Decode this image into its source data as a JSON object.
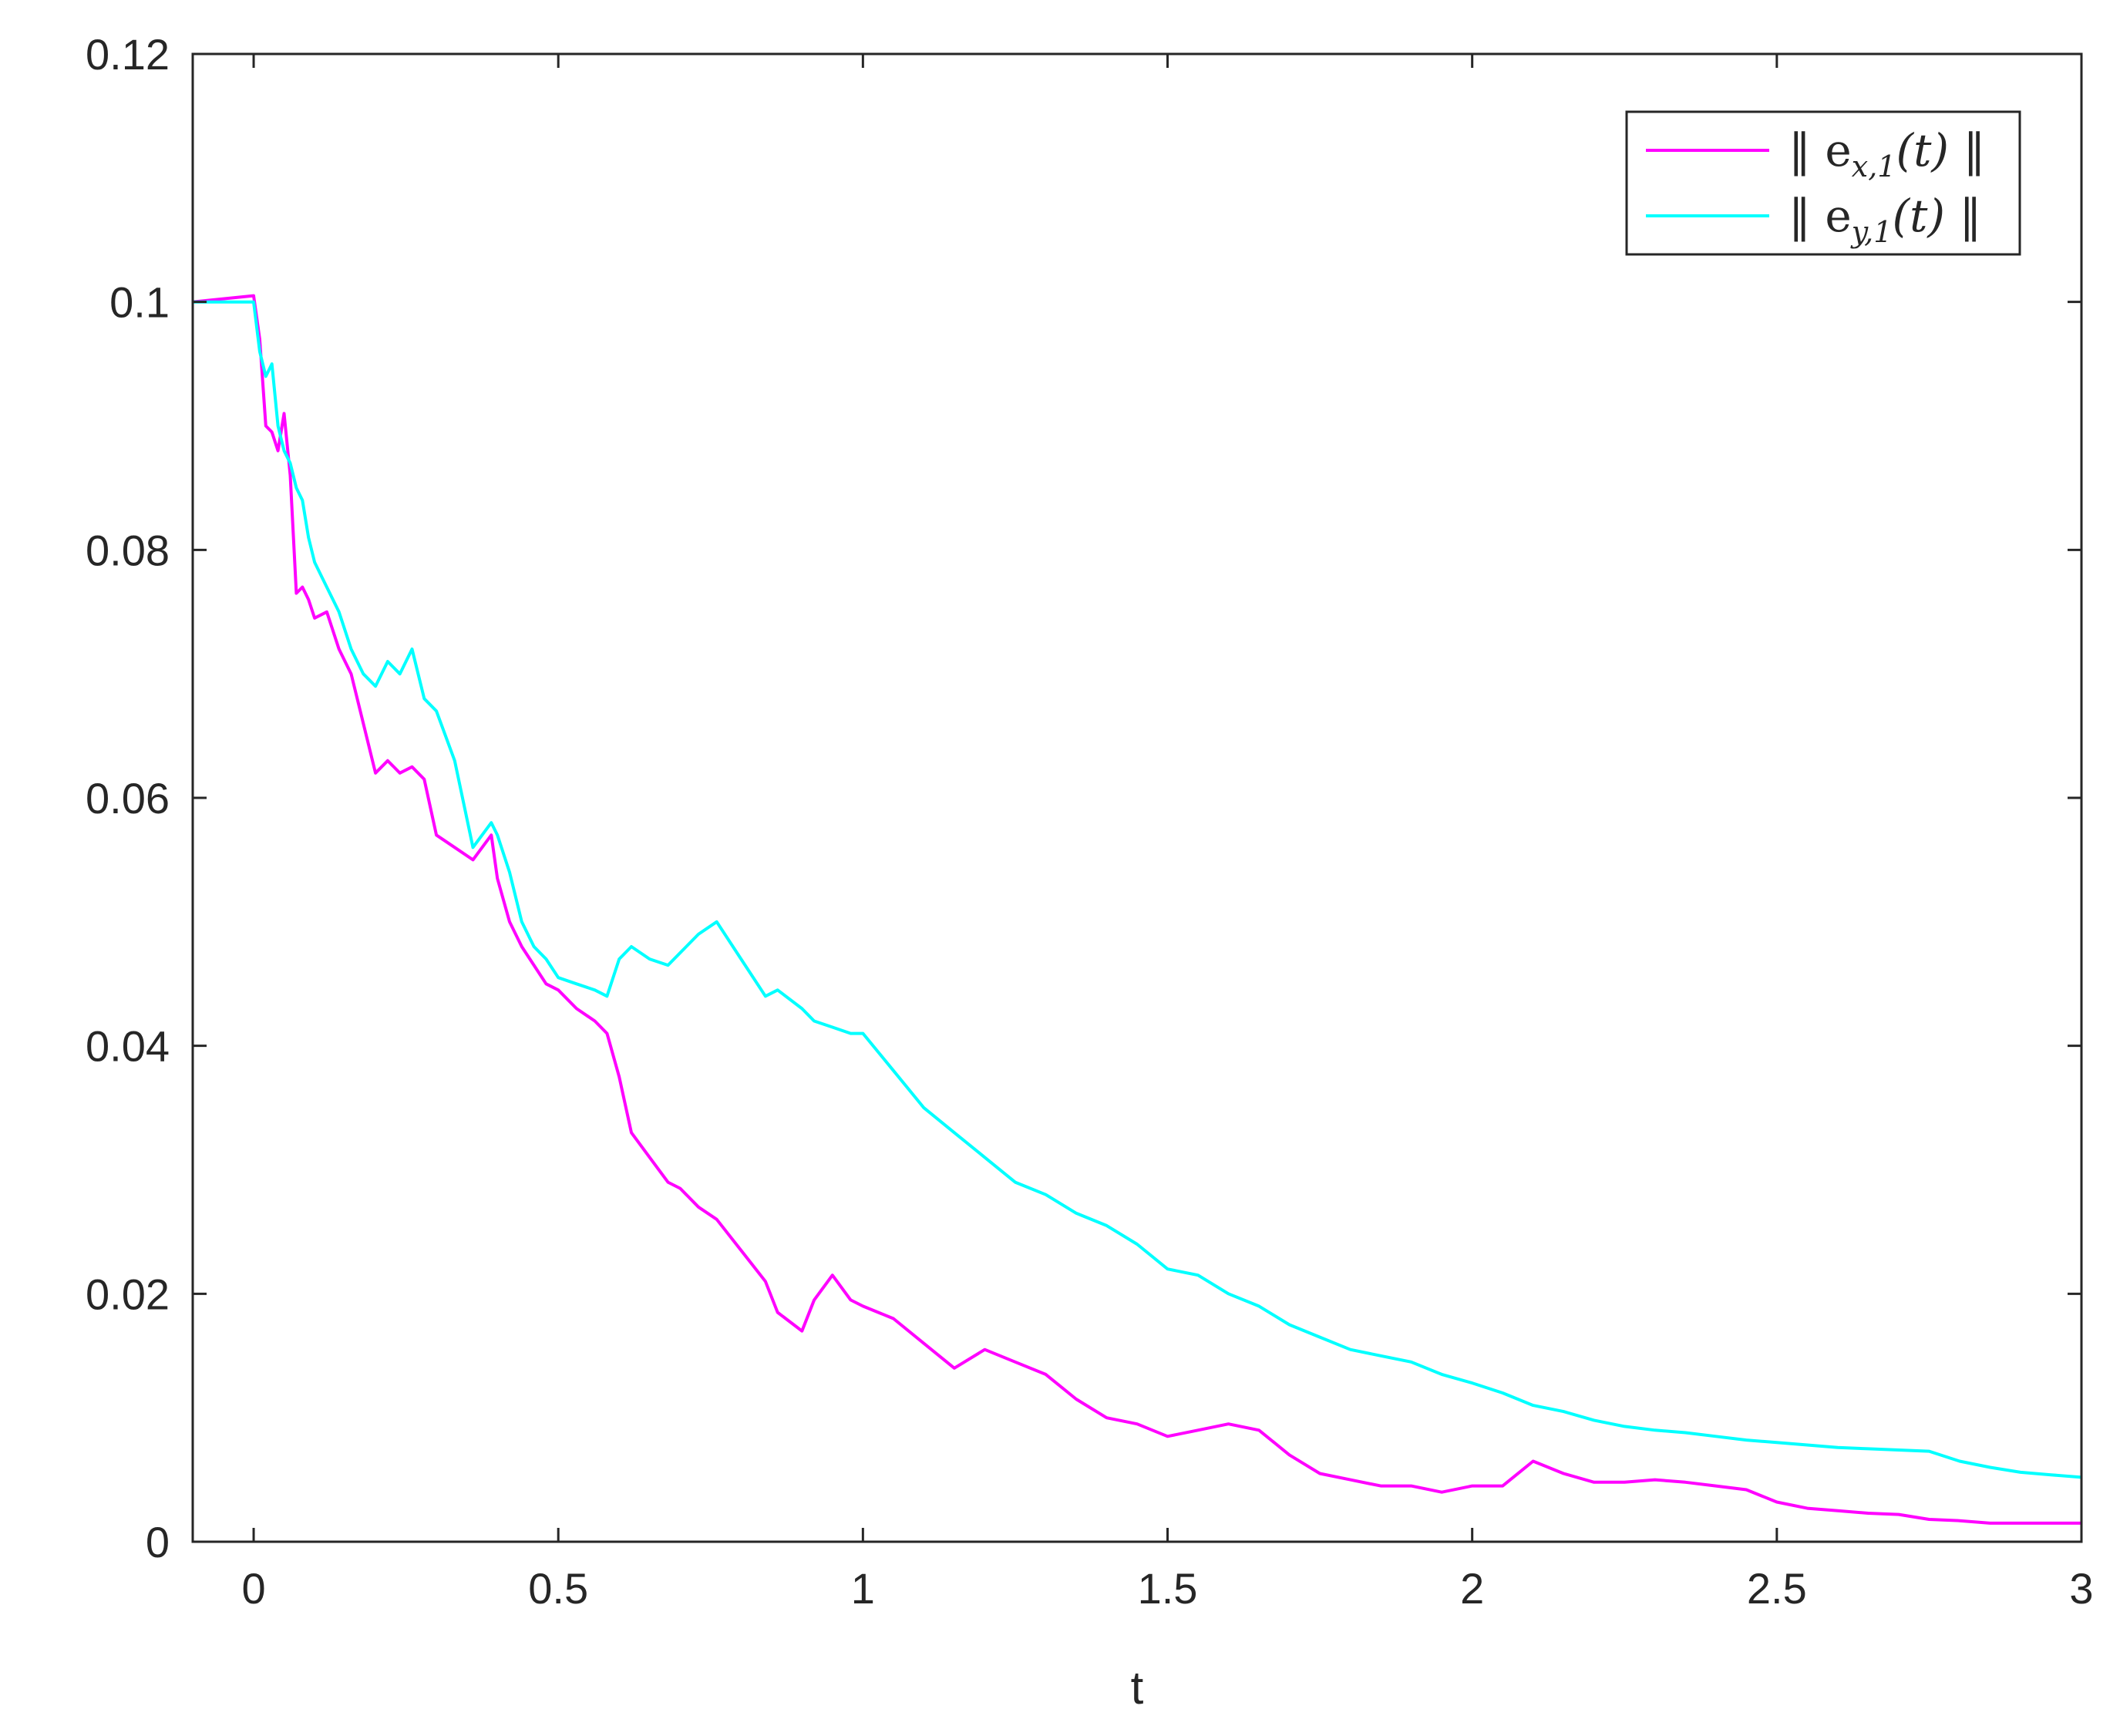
{
  "chart_data": {
    "type": "line",
    "xlabel": "t",
    "ylabel": "",
    "xlim": [
      -0.1,
      3
    ],
    "ylim": [
      0,
      0.12
    ],
    "xticks": [
      0,
      0.5,
      1,
      1.5,
      2,
      2.5,
      3
    ],
    "xtick_labels": [
      "0",
      "0.5",
      "1",
      "1.5",
      "2",
      "2.5",
      "3"
    ],
    "yticks": [
      0,
      0.02,
      0.04,
      0.06,
      0.08,
      0.1,
      0.12
    ],
    "ytick_labels": [
      "0",
      "0.02",
      "0.04",
      "0.06",
      "0.08",
      "0.1",
      "0.12"
    ],
    "grid": false,
    "legend_position": "top-right",
    "series": [
      {
        "name": "‖ e_{x,1}(t) ‖",
        "legend": {
          "pre": "‖ e",
          "sub": "x,1",
          "post": "(t) ‖"
        },
        "color": "#ff00ff",
        "x": [
          -0.1,
          0.0,
          0.01,
          0.02,
          0.03,
          0.04,
          0.05,
          0.06,
          0.07,
          0.08,
          0.09,
          0.1,
          0.12,
          0.14,
          0.16,
          0.18,
          0.2,
          0.22,
          0.24,
          0.26,
          0.28,
          0.3,
          0.33,
          0.36,
          0.39,
          0.4,
          0.42,
          0.44,
          0.46,
          0.48,
          0.5,
          0.53,
          0.56,
          0.58,
          0.6,
          0.62,
          0.65,
          0.68,
          0.7,
          0.73,
          0.76,
          0.8,
          0.84,
          0.86,
          0.9,
          0.92,
          0.95,
          0.98,
          1.0,
          1.05,
          1.1,
          1.15,
          1.2,
          1.25,
          1.3,
          1.35,
          1.4,
          1.45,
          1.5,
          1.55,
          1.6,
          1.65,
          1.7,
          1.75,
          1.8,
          1.85,
          1.9,
          1.95,
          2.0,
          2.05,
          2.1,
          2.15,
          2.2,
          2.25,
          2.3,
          2.35,
          2.4,
          2.45,
          2.5,
          2.55,
          2.6,
          2.65,
          2.7,
          2.75,
          2.8,
          2.85,
          2.9,
          2.95,
          3.0
        ],
        "y": [
          0.1,
          0.1005,
          0.097,
          0.09,
          0.0895,
          0.088,
          0.091,
          0.086,
          0.0765,
          0.077,
          0.076,
          0.0745,
          0.075,
          0.072,
          0.07,
          0.066,
          0.062,
          0.063,
          0.062,
          0.0625,
          0.0615,
          0.057,
          0.056,
          0.055,
          0.057,
          0.0535,
          0.05,
          0.048,
          0.0465,
          0.045,
          0.0445,
          0.043,
          0.042,
          0.041,
          0.0375,
          0.033,
          0.031,
          0.029,
          0.0285,
          0.027,
          0.026,
          0.0235,
          0.021,
          0.0185,
          0.017,
          0.0195,
          0.0215,
          0.0195,
          0.019,
          0.018,
          0.016,
          0.014,
          0.0155,
          0.0145,
          0.0135,
          0.0115,
          0.01,
          0.0095,
          0.0085,
          0.009,
          0.0095,
          0.009,
          0.007,
          0.0055,
          0.005,
          0.0045,
          0.0045,
          0.004,
          0.0045,
          0.0045,
          0.0065,
          0.0055,
          0.0048,
          0.0048,
          0.005,
          0.0048,
          0.0045,
          0.0042,
          0.0032,
          0.0027,
          0.0025,
          0.0023,
          0.0022,
          0.0018,
          0.0017,
          0.0015,
          0.0015,
          0.0015,
          0.0015
        ]
      },
      {
        "name": "‖ e_{y,1}(t) ‖",
        "legend": {
          "pre": "‖ e",
          "sub": "y,1",
          "post": "(t) ‖"
        },
        "color": "#00ffff",
        "x": [
          -0.1,
          0.0,
          0.01,
          0.02,
          0.03,
          0.04,
          0.05,
          0.06,
          0.07,
          0.08,
          0.09,
          0.1,
          0.12,
          0.14,
          0.16,
          0.18,
          0.2,
          0.22,
          0.24,
          0.26,
          0.28,
          0.3,
          0.33,
          0.36,
          0.39,
          0.4,
          0.42,
          0.44,
          0.46,
          0.48,
          0.5,
          0.53,
          0.56,
          0.58,
          0.6,
          0.62,
          0.65,
          0.68,
          0.7,
          0.73,
          0.76,
          0.8,
          0.84,
          0.86,
          0.9,
          0.92,
          0.95,
          0.98,
          1.0,
          1.05,
          1.1,
          1.15,
          1.2,
          1.25,
          1.3,
          1.35,
          1.4,
          1.45,
          1.5,
          1.55,
          1.6,
          1.65,
          1.7,
          1.75,
          1.8,
          1.85,
          1.9,
          1.95,
          2.0,
          2.05,
          2.1,
          2.15,
          2.2,
          2.25,
          2.3,
          2.35,
          2.4,
          2.45,
          2.5,
          2.55,
          2.6,
          2.65,
          2.7,
          2.75,
          2.8,
          2.85,
          2.9,
          2.95,
          3.0
        ],
        "y": [
          0.1,
          0.1,
          0.096,
          0.094,
          0.095,
          0.09,
          0.088,
          0.087,
          0.085,
          0.084,
          0.081,
          0.079,
          0.077,
          0.075,
          0.072,
          0.07,
          0.069,
          0.071,
          0.07,
          0.072,
          0.068,
          0.067,
          0.063,
          0.056,
          0.058,
          0.057,
          0.054,
          0.05,
          0.048,
          0.047,
          0.0455,
          0.045,
          0.0445,
          0.044,
          0.047,
          0.048,
          0.047,
          0.0465,
          0.0475,
          0.049,
          0.05,
          0.047,
          0.044,
          0.0445,
          0.043,
          0.042,
          0.0415,
          0.041,
          0.041,
          0.038,
          0.035,
          0.033,
          0.031,
          0.029,
          0.028,
          0.0265,
          0.0255,
          0.024,
          0.022,
          0.0215,
          0.02,
          0.019,
          0.0175,
          0.0165,
          0.0155,
          0.015,
          0.0145,
          0.0135,
          0.0128,
          0.012,
          0.011,
          0.0105,
          0.0098,
          0.0093,
          0.009,
          0.0088,
          0.0085,
          0.0082,
          0.008,
          0.0078,
          0.0076,
          0.0075,
          0.0074,
          0.0073,
          0.0065,
          0.006,
          0.0056,
          0.0054,
          0.0052
        ]
      }
    ]
  }
}
